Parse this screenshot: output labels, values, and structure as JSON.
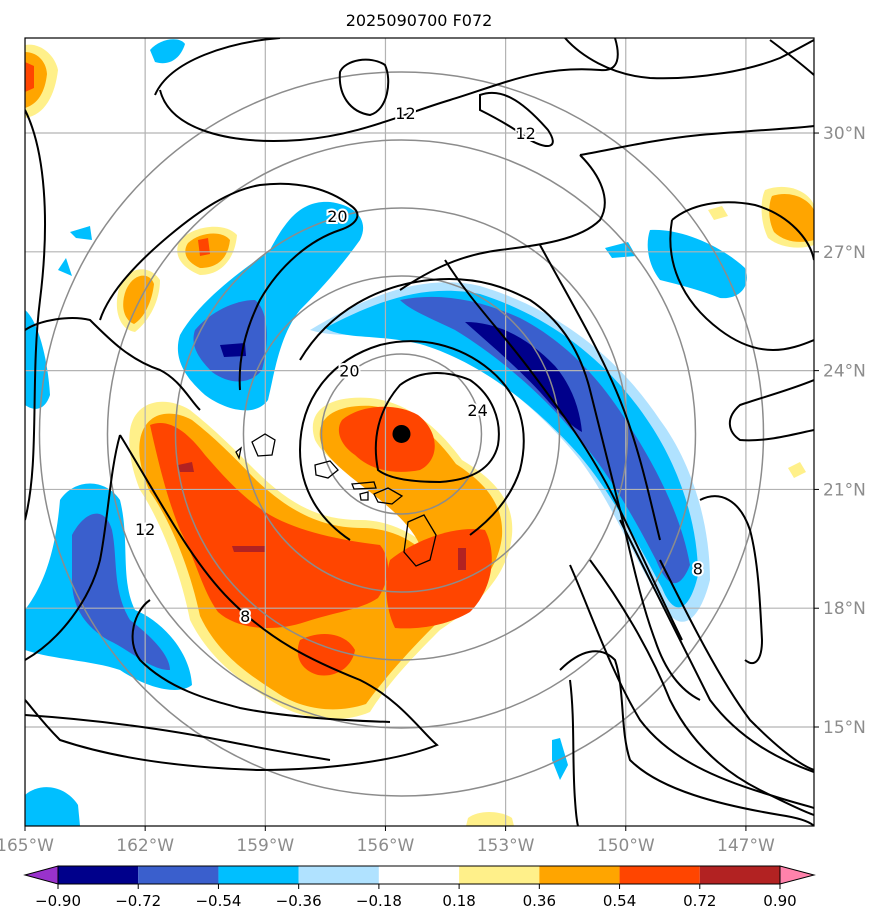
{
  "chart_data": {
    "type": "heatmap",
    "title": "2025090700 F072",
    "projection": "map",
    "x_axis": {
      "ticks": [
        -165,
        -162,
        -159,
        -156,
        -153,
        -150,
        -147
      ],
      "tick_labels": [
        "165°W",
        "162°W",
        "159°W",
        "156°W",
        "153°W",
        "150°W",
        "147°W"
      ],
      "range": [
        -165.0,
        -145.3
      ]
    },
    "y_axis": {
      "ticks": [
        15,
        18,
        21,
        24,
        27,
        30
      ],
      "tick_labels": [
        "15°N",
        "18°N",
        "21°N",
        "24°N",
        "27°N",
        "30°N"
      ],
      "range": [
        12.5,
        32.4
      ],
      "position": "right"
    },
    "grid": true,
    "colorbar": {
      "orientation": "horizontal",
      "extend": "both",
      "levels": [
        -0.9,
        -0.72,
        -0.54,
        -0.36,
        -0.18,
        0.18,
        0.36,
        0.54,
        0.72,
        0.9
      ],
      "tick_labels": [
        "−0.90",
        "−0.72",
        "−0.54",
        "−0.36",
        "−0.18",
        "0.18",
        "0.36",
        "0.54",
        "0.72",
        "0.90"
      ],
      "colors": [
        "#9932cc",
        "#00008b",
        "#3a5fcd",
        "#00bfff",
        "#b0e2ff",
        "#ffffff",
        "#fff08a",
        "#ffa500",
        "#ff4500",
        "#b22222",
        "#ff82ab"
      ]
    },
    "storm_center": {
      "lon": -155.6,
      "lat": 22.4
    },
    "range_rings": {
      "center_lon": -155.6,
      "center_lat": 22.4,
      "count": 5
    },
    "contour_labels": [
      {
        "text": "12",
        "lon": -155.5,
        "lat": 30.5
      },
      {
        "text": "12",
        "lon": -152.5,
        "lat": 30.0
      },
      {
        "text": "20",
        "lon": -157.2,
        "lat": 27.9
      },
      {
        "text": "20",
        "lon": -156.9,
        "lat": 24.0
      },
      {
        "text": "24",
        "lon": -153.7,
        "lat": 23.0
      },
      {
        "text": "12",
        "lon": -162.0,
        "lat": 20.0
      },
      {
        "text": "8",
        "lon": -159.5,
        "lat": 17.8
      },
      {
        "text": "8",
        "lon": -148.2,
        "lat": 19.0
      }
    ]
  }
}
